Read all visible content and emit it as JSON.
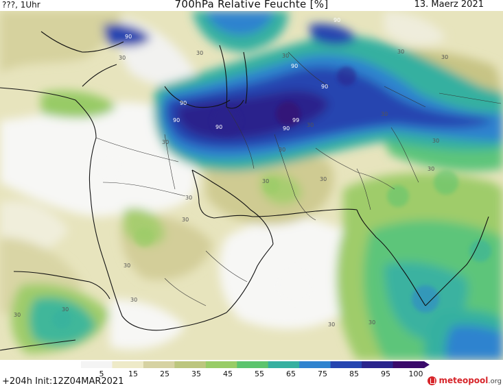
{
  "header": {
    "left_text": "???, 1Uhr",
    "title": "700hPa Relative Feuchte [%]",
    "date": "13. Maerz 2021"
  },
  "footer": {
    "run_info": "+204h  Init:12Z04MAR2021",
    "logo_text": "meteopool",
    "logo_suffix": ".org"
  },
  "legend": {
    "ticks": [
      "5",
      "15",
      "25",
      "35",
      "45",
      "55",
      "65",
      "75",
      "85",
      "95",
      "100"
    ],
    "colors": [
      "#f4f4f4",
      "#eeeac8",
      "#d6d2a2",
      "#bcc67e",
      "#98cc66",
      "#5cc46e",
      "#36b0a0",
      "#2f83cf",
      "#2545b0",
      "#29248c",
      "#3a0a6a"
    ]
  },
  "contour_labels": [
    "90",
    "90",
    "90",
    "90",
    "90",
    "90",
    "90",
    "90",
    "99",
    "30",
    "30",
    "30",
    "30",
    "30",
    "30",
    "30",
    "30",
    "30",
    "30",
    "30",
    "30",
    "30",
    "30",
    "30",
    "30",
    "30",
    "30",
    "30",
    "30",
    "30"
  ]
}
